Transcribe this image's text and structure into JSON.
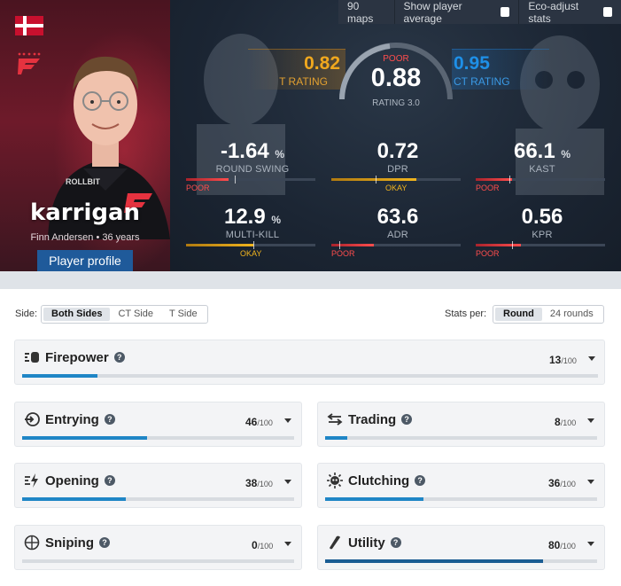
{
  "player": {
    "nickname": "karrigan",
    "realname_age": "Finn Andersen • 36 years",
    "profile_button": "Player profile"
  },
  "topbar": {
    "maps": "90 maps",
    "show_average": "Show player average",
    "eco_adjust": "Eco-adjust stats"
  },
  "rating": {
    "t_value": "0.82",
    "t_label": "T RATING",
    "ct_value": "0.95",
    "ct_label": "CT RATING",
    "main_value": "0.88",
    "main_label": "RATING 3.0",
    "main_level": "POOR"
  },
  "metrics": [
    {
      "value": "-1.64",
      "unit": "%",
      "label": "ROUND SWING",
      "level": "POOR",
      "level_class": "poor",
      "fill": 0.33,
      "tick": 0.38
    },
    {
      "value": "0.72",
      "unit": "",
      "label": "DPR",
      "level": "OKAY",
      "level_class": "okay",
      "fill": 0.66,
      "tick": 0.34
    },
    {
      "value": "66.1",
      "unit": "%",
      "label": "KAST",
      "level": "POOR",
      "level_class": "poor",
      "fill": 0.28,
      "tick": 0.26
    },
    {
      "value": "12.9",
      "unit": "%",
      "label": "MULTI-KILL",
      "level": "OKAY",
      "level_class": "okay",
      "fill": 0.52,
      "tick": 0.52
    },
    {
      "value": "63.6",
      "unit": "",
      "label": "ADR",
      "level": "POOR",
      "level_class": "poor",
      "fill": 0.33,
      "tick": 0.06
    },
    {
      "value": "0.56",
      "unit": "",
      "label": "KPR",
      "level": "POOR",
      "level_class": "poor",
      "fill": 0.35,
      "tick": 0.28
    }
  ],
  "filters": {
    "side_label": "Side:",
    "sides": [
      "Both Sides",
      "CT Side",
      "T Side"
    ],
    "stats_per_label": "Stats per:",
    "per": [
      "Round",
      "24 rounds"
    ]
  },
  "categories": {
    "firepower": {
      "title": "Firepower",
      "score": "13",
      "den": "/100",
      "fraction": 0.13
    },
    "entrying": {
      "title": "Entrying",
      "score": "46",
      "den": "/100",
      "fraction": 0.46
    },
    "trading": {
      "title": "Trading",
      "score": "8",
      "den": "/100",
      "fraction": 0.08
    },
    "opening": {
      "title": "Opening",
      "score": "38",
      "den": "/100",
      "fraction": 0.38
    },
    "clutching": {
      "title": "Clutching",
      "score": "36",
      "den": "/100",
      "fraction": 0.36
    },
    "sniping": {
      "title": "Sniping",
      "score": "0",
      "den": "/100",
      "fraction": 0.0
    },
    "utility": {
      "title": "Utility",
      "score": "80",
      "den": "/100",
      "fraction": 0.8
    }
  },
  "colors": {
    "accent": "#1f86c6",
    "utility": "#1a5d93",
    "poor": "#ff4d4d",
    "okay": "#f0b41e",
    "t": "#f0a81e",
    "ct": "#1e90e8"
  }
}
